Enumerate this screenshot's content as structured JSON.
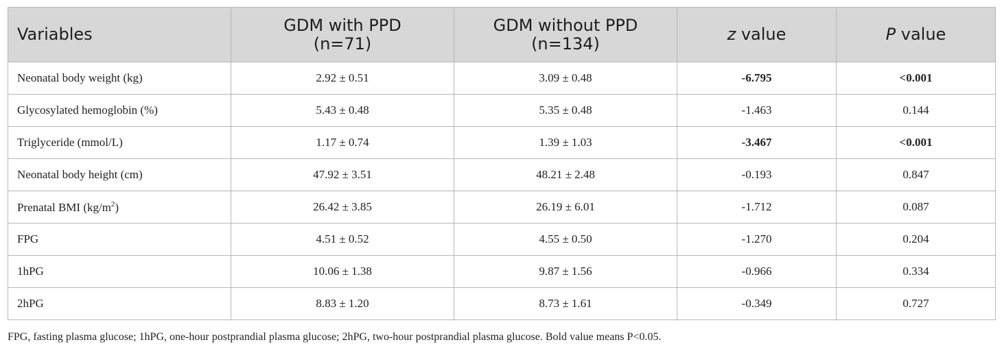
{
  "table": {
    "headers": {
      "variables": "Variables",
      "with_ppd_line1": "GDM with PPD",
      "with_ppd_line2": "(n=71)",
      "without_ppd_line1": "GDM without PPD",
      "without_ppd_line2": "(n=134)",
      "z_italic": "z",
      "z_rest": " value",
      "p_italic": "P",
      "p_rest": " value"
    },
    "rows": [
      {
        "variable": "Neonatal body weight (kg)",
        "with_ppd": "2.92 ± 0.51",
        "without_ppd": "3.09 ± 0.48",
        "z": "-6.795",
        "p": "<0.001",
        "bold": true
      },
      {
        "variable": "Glycosylated hemoglobin (%)",
        "with_ppd": "5.43 ± 0.48",
        "without_ppd": "5.35 ± 0.48",
        "z": "-1.463",
        "p": "0.144",
        "bold": false
      },
      {
        "variable": "Triglyceride (mmol/L)",
        "with_ppd": "1.17 ± 0.74",
        "without_ppd": "1.39 ± 1.03",
        "z": "-3.467",
        "p": "<0.001",
        "bold": true
      },
      {
        "variable": "Neonatal body height (cm)",
        "with_ppd": "47.92 ± 3.51",
        "without_ppd": "48.21 ± 2.48",
        "z": "-0.193",
        "p": "0.847",
        "bold": false
      },
      {
        "variable_prefix": "Prenatal BMI (kg/m",
        "variable_sup": "2",
        "variable_suffix": ")",
        "with_ppd": "26.42 ± 3.85",
        "without_ppd": "26.19 ± 6.01",
        "z": "-1.712",
        "p": "0.087",
        "bold": false
      },
      {
        "variable": "FPG",
        "with_ppd": "4.51 ± 0.52",
        "without_ppd": "4.55 ± 0.50",
        "z": "-1.270",
        "p": "0.204",
        "bold": false
      },
      {
        "variable": "1hPG",
        "with_ppd": "10.06 ± 1.38",
        "without_ppd": "9.87 ± 1.56",
        "z": "-0.966",
        "p": "0.334",
        "bold": false
      },
      {
        "variable": "2hPG",
        "with_ppd": "8.83 ± 1.20",
        "without_ppd": "8.73 ± 1.61",
        "z": "-0.349",
        "p": "0.727",
        "bold": false
      }
    ]
  },
  "footnote": "FPG, fasting plasma glucose; 1hPG, one-hour postprandial plasma glucose; 2hPG, two-hour postprandial plasma glucose. Bold value means P<0.05."
}
